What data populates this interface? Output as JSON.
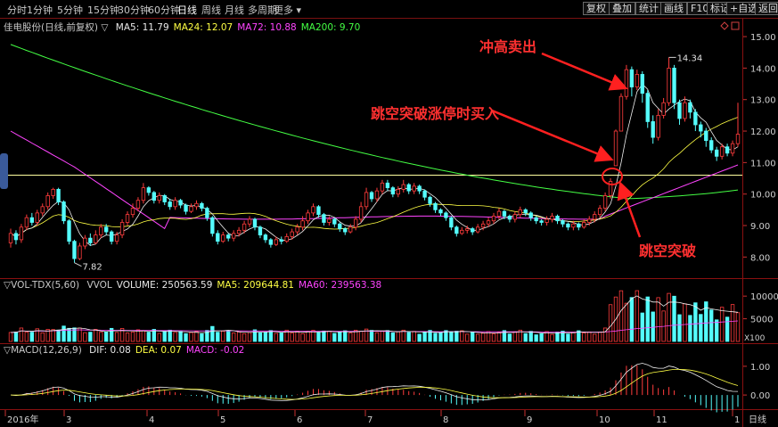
{
  "toolbar": {
    "periods": [
      "分时",
      "1分钟",
      "5分钟",
      "15分钟",
      "30分钟",
      "60分钟",
      "日线",
      "周线",
      "月线",
      "多周期",
      "更多 ▾"
    ],
    "active_period": "日线",
    "right_buttons": [
      "复权",
      "叠加",
      "统计",
      "画线",
      "F10",
      "标记",
      "+自选",
      "返回"
    ]
  },
  "price_panel": {
    "title": "佳电股份(日线,前复权)",
    "ma": [
      {
        "label": "MA5: 11.79",
        "color": "#e8e8e8"
      },
      {
        "label": "MA24: 12.07",
        "color": "#ffff44"
      },
      {
        "label": "MA72: 10.88",
        "color": "#ff44ff"
      },
      {
        "label": "MA200: 9.70",
        "color": "#44ff44"
      }
    ],
    "y_ticks": [
      "15.00",
      "14.00",
      "13.00",
      "12.00",
      "11.00",
      "10.00",
      "9.00",
      "8.00"
    ],
    "high_label": "14.34",
    "low_label": "7.82",
    "corner_icons": [
      "diamond-icon",
      "square-icon"
    ]
  },
  "volume_panel": {
    "title": "VOL-TDX(5,60)",
    "items": [
      {
        "label": "VVOL",
        "color": "#c8c8c8"
      },
      {
        "label": "VOLUME: 250563.59",
        "color": "#e8e8e8"
      },
      {
        "label": "MA5: 209644.81",
        "color": "#ffff44"
      },
      {
        "label": "MA60: 239563.38",
        "color": "#ff44ff"
      }
    ],
    "y_ticks": [
      "10000",
      "5000"
    ],
    "unit": "X100"
  },
  "macd_panel": {
    "title": "MACD(12,26,9)",
    "items": [
      {
        "label": "DIF: 0.08",
        "color": "#e8e8e8"
      },
      {
        "label": "DEA: 0.07",
        "color": "#ffff44"
      },
      {
        "label": "MACD: -0.02",
        "color": "#ff44ff"
      }
    ],
    "y_ticks": [
      "1.00",
      "0.00"
    ]
  },
  "x_axis": {
    "labels": [
      "2016年",
      "3",
      "4",
      "5",
      "6",
      "7",
      "8",
      "9",
      "10",
      "11",
      "1"
    ],
    "period_label": "日线"
  },
  "annotations": {
    "sell": "冲高卖出",
    "buy": "跳空突破涨停时买入",
    "gap": "跳空突破"
  },
  "chart_data": {
    "type": "candlestick",
    "price_ylim": [
      7.5,
      15.2
    ],
    "resistance_line": 10.6,
    "volume_ylim": [
      0,
      12000
    ],
    "macd_ylim": [
      -0.4,
      1.4
    ],
    "candles": [
      [
        8.45,
        8.75,
        8.9,
        8.3
      ],
      [
        8.75,
        8.55,
        8.85,
        8.4
      ],
      [
        8.55,
        8.95,
        9.05,
        8.45
      ],
      [
        8.95,
        9.25,
        9.35,
        8.85
      ],
      [
        9.25,
        9.1,
        9.4,
        9.0
      ],
      [
        9.1,
        9.4,
        9.5,
        9.0
      ],
      [
        9.4,
        9.6,
        9.7,
        9.3
      ],
      [
        9.6,
        9.95,
        10.05,
        9.5
      ],
      [
        9.95,
        10.15,
        10.2,
        9.85
      ],
      [
        10.15,
        9.75,
        10.2,
        9.65
      ],
      [
        9.75,
        9.15,
        9.8,
        9.05
      ],
      [
        9.15,
        8.5,
        9.2,
        8.4
      ],
      [
        8.5,
        7.95,
        8.55,
        7.82
      ],
      [
        7.95,
        8.35,
        8.45,
        7.9
      ],
      [
        8.35,
        8.6,
        8.7,
        8.25
      ],
      [
        8.6,
        8.45,
        8.75,
        8.35
      ],
      [
        8.45,
        8.7,
        8.85,
        8.4
      ],
      [
        8.7,
        8.95,
        9.05,
        8.6
      ],
      [
        8.95,
        8.8,
        9.05,
        8.7
      ],
      [
        8.8,
        8.5,
        8.85,
        8.4
      ],
      [
        8.5,
        8.7,
        8.8,
        8.4
      ],
      [
        8.7,
        9.1,
        9.2,
        8.6
      ],
      [
        9.1,
        9.35,
        9.45,
        9.0
      ],
      [
        9.35,
        9.55,
        9.7,
        9.25
      ],
      [
        9.55,
        9.8,
        9.9,
        9.45
      ],
      [
        9.8,
        10.2,
        10.35,
        9.7
      ],
      [
        10.2,
        10.05,
        10.25,
        9.95
      ],
      [
        10.05,
        9.8,
        10.1,
        9.7
      ],
      [
        9.8,
        9.95,
        10.05,
        9.7
      ],
      [
        9.95,
        9.75,
        10.0,
        9.65
      ],
      [
        9.75,
        9.6,
        9.85,
        9.5
      ],
      [
        9.6,
        9.8,
        9.9,
        9.5
      ],
      [
        9.8,
        9.65,
        9.85,
        9.55
      ],
      [
        9.65,
        9.45,
        9.7,
        9.35
      ],
      [
        9.45,
        9.6,
        9.7,
        9.4
      ],
      [
        9.6,
        9.7,
        9.8,
        9.5
      ],
      [
        9.7,
        9.55,
        9.75,
        9.45
      ],
      [
        9.55,
        9.25,
        9.6,
        9.15
      ],
      [
        9.25,
        8.75,
        9.3,
        8.65
      ],
      [
        8.75,
        8.5,
        8.85,
        8.4
      ],
      [
        8.5,
        8.7,
        8.8,
        8.45
      ],
      [
        8.7,
        8.6,
        8.75,
        8.5
      ],
      [
        8.6,
        8.75,
        8.85,
        8.5
      ],
      [
        8.75,
        8.85,
        8.95,
        8.65
      ],
      [
        8.85,
        9.05,
        9.15,
        8.75
      ],
      [
        9.05,
        9.2,
        9.3,
        8.95
      ],
      [
        9.2,
        8.95,
        9.25,
        8.85
      ],
      [
        8.95,
        8.7,
        9.0,
        8.6
      ],
      [
        8.7,
        8.55,
        8.75,
        8.45
      ],
      [
        8.55,
        8.4,
        8.6,
        8.3
      ],
      [
        8.4,
        8.55,
        8.65,
        8.35
      ],
      [
        8.55,
        8.5,
        8.65,
        8.4
      ],
      [
        8.5,
        8.65,
        8.75,
        8.45
      ],
      [
        8.65,
        8.8,
        8.9,
        8.55
      ],
      [
        8.8,
        8.95,
        9.05,
        8.7
      ],
      [
        8.95,
        9.15,
        9.3,
        8.85
      ],
      [
        9.15,
        9.4,
        9.5,
        9.05
      ],
      [
        9.4,
        9.6,
        9.7,
        9.3
      ],
      [
        9.6,
        9.35,
        9.65,
        9.25
      ],
      [
        9.35,
        9.1,
        9.4,
        9.0
      ],
      [
        9.1,
        9.2,
        9.3,
        9.0
      ],
      [
        9.2,
        9.05,
        9.25,
        8.95
      ],
      [
        9.05,
        8.9,
        9.1,
        8.8
      ],
      [
        8.9,
        8.8,
        8.95,
        8.7
      ],
      [
        8.8,
        8.95,
        9.05,
        8.75
      ],
      [
        8.95,
        9.2,
        9.3,
        8.85
      ],
      [
        9.2,
        9.6,
        9.75,
        9.1
      ],
      [
        9.6,
        10.05,
        10.2,
        9.5
      ],
      [
        10.05,
        9.85,
        10.1,
        9.75
      ],
      [
        9.85,
        10.1,
        10.2,
        9.75
      ],
      [
        10.1,
        10.35,
        10.45,
        10.0
      ],
      [
        10.35,
        10.2,
        10.45,
        10.1
      ],
      [
        10.2,
        10.0,
        10.25,
        9.9
      ],
      [
        10.0,
        10.15,
        10.25,
        9.9
      ],
      [
        10.15,
        10.3,
        10.45,
        10.05
      ],
      [
        10.3,
        10.1,
        10.35,
        10.0
      ],
      [
        10.1,
        10.25,
        10.35,
        10.0
      ],
      [
        10.25,
        10.1,
        10.3,
        10.0
      ],
      [
        10.1,
        9.9,
        10.15,
        9.8
      ],
      [
        9.9,
        9.7,
        9.95,
        9.6
      ],
      [
        9.7,
        9.5,
        9.75,
        9.4
      ],
      [
        9.5,
        9.4,
        9.55,
        9.3
      ],
      [
        9.4,
        9.25,
        9.45,
        9.15
      ],
      [
        9.25,
        8.95,
        9.3,
        8.85
      ],
      [
        8.95,
        8.75,
        9.0,
        8.65
      ],
      [
        8.75,
        8.85,
        8.95,
        8.7
      ],
      [
        8.85,
        8.9,
        9.0,
        8.75
      ],
      [
        8.9,
        8.8,
        8.95,
        8.7
      ],
      [
        8.8,
        8.95,
        9.05,
        8.75
      ],
      [
        8.95,
        9.05,
        9.15,
        8.85
      ],
      [
        9.05,
        9.15,
        9.25,
        8.95
      ],
      [
        9.15,
        9.3,
        9.4,
        9.05
      ],
      [
        9.3,
        9.45,
        9.55,
        9.2
      ],
      [
        9.45,
        9.3,
        9.5,
        9.2
      ],
      [
        9.3,
        9.2,
        9.35,
        9.1
      ],
      [
        9.2,
        9.35,
        9.45,
        9.1
      ],
      [
        9.35,
        9.5,
        9.6,
        9.25
      ],
      [
        9.5,
        9.4,
        9.55,
        9.3
      ],
      [
        9.4,
        9.25,
        9.45,
        9.15
      ],
      [
        9.25,
        9.15,
        9.3,
        9.05
      ],
      [
        9.15,
        9.1,
        9.2,
        9.0
      ],
      [
        9.1,
        9.2,
        9.3,
        9.0
      ],
      [
        9.2,
        9.3,
        9.4,
        9.1
      ],
      [
        9.3,
        9.15,
        9.35,
        9.05
      ],
      [
        9.15,
        9.05,
        9.2,
        8.95
      ],
      [
        9.05,
        8.95,
        9.1,
        8.85
      ],
      [
        8.95,
        9.05,
        9.15,
        8.85
      ],
      [
        9.05,
        8.95,
        9.1,
        8.85
      ],
      [
        8.95,
        9.1,
        9.2,
        8.9
      ],
      [
        9.1,
        9.2,
        9.3,
        9.0
      ],
      [
        9.2,
        9.35,
        9.45,
        9.1
      ],
      [
        9.35,
        9.55,
        9.65,
        9.25
      ],
      [
        9.55,
        9.95,
        10.05,
        9.45
      ],
      [
        9.95,
        10.4,
        10.5,
        9.85
      ],
      [
        10.9,
        12.0,
        12.05,
        10.9
      ],
      [
        12.0,
        13.1,
        13.2,
        12.0
      ],
      [
        13.1,
        13.95,
        14.1,
        13.0
      ],
      [
        13.95,
        13.4,
        14.05,
        13.1
      ],
      [
        13.4,
        13.8,
        13.95,
        13.3
      ],
      [
        13.8,
        13.2,
        13.9,
        12.9
      ],
      [
        13.2,
        12.3,
        13.3,
        12.1
      ],
      [
        12.3,
        11.8,
        12.5,
        11.6
      ],
      [
        11.8,
        12.5,
        12.7,
        11.7
      ],
      [
        12.5,
        12.9,
        13.05,
        12.4
      ],
      [
        12.9,
        14.0,
        14.34,
        12.8
      ],
      [
        14.0,
        12.9,
        14.1,
        12.7
      ],
      [
        12.9,
        12.4,
        13.0,
        12.2
      ],
      [
        12.4,
        12.9,
        13.1,
        12.3
      ],
      [
        12.9,
        12.6,
        13.0,
        12.4
      ],
      [
        12.6,
        12.2,
        12.7,
        12.0
      ],
      [
        12.2,
        12.0,
        12.3,
        11.8
      ],
      [
        12.0,
        11.7,
        12.1,
        11.5
      ],
      [
        11.7,
        11.4,
        11.8,
        11.3
      ],
      [
        11.4,
        11.2,
        11.5,
        11.05
      ],
      [
        11.2,
        11.5,
        11.6,
        11.1
      ],
      [
        11.5,
        11.3,
        11.6,
        11.2
      ],
      [
        11.3,
        11.6,
        11.7,
        11.2
      ],
      [
        11.6,
        11.9,
        12.9,
        11.5
      ]
    ]
  }
}
